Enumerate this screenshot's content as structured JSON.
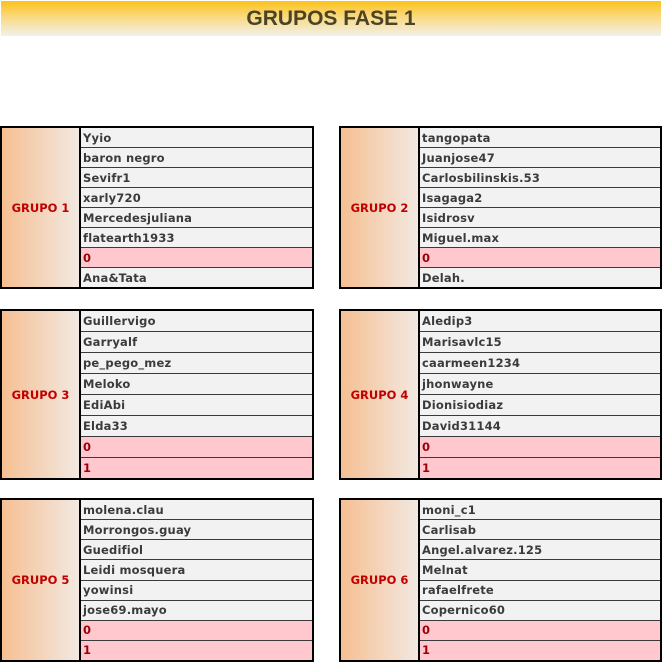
{
  "title": "GRUPOS FASE 1",
  "groups": [
    {
      "label": "GRUPO 1",
      "rows": [
        {
          "text": "Yyio",
          "highlight": false
        },
        {
          "text": "baron negro",
          "highlight": false
        },
        {
          "text": "Sevifr1",
          "highlight": false
        },
        {
          "text": "xarly720",
          "highlight": false
        },
        {
          "text": "Mercedesjuliana",
          "highlight": false
        },
        {
          "text": "flatearth1933",
          "highlight": false
        },
        {
          "text": "0",
          "highlight": true
        },
        {
          "text": "Ana&Tata",
          "highlight": false
        }
      ]
    },
    {
      "label": "GRUPO 2",
      "rows": [
        {
          "text": "tangopata",
          "highlight": false
        },
        {
          "text": "Juanjose47",
          "highlight": false
        },
        {
          "text": "Carlosbilinskis.53",
          "highlight": false
        },
        {
          "text": "Isagaga2",
          "highlight": false
        },
        {
          "text": "Isidrosv",
          "highlight": false
        },
        {
          "text": "Miguel.max",
          "highlight": false
        },
        {
          "text": "0",
          "highlight": true
        },
        {
          "text": "Delah.",
          "highlight": false
        }
      ]
    },
    {
      "label": "GRUPO 3",
      "rows": [
        {
          "text": "Guillervigo",
          "highlight": false
        },
        {
          "text": "Garryalf",
          "highlight": false
        },
        {
          "text": "pe_pego_mez",
          "highlight": false
        },
        {
          "text": "Meloko",
          "highlight": false
        },
        {
          "text": "EdiAbi",
          "highlight": false
        },
        {
          "text": "Elda33",
          "highlight": false
        },
        {
          "text": "0",
          "highlight": true
        },
        {
          "text": "1",
          "highlight": true
        }
      ]
    },
    {
      "label": "GRUPO 4",
      "rows": [
        {
          "text": "Aledip3",
          "highlight": false
        },
        {
          "text": "Marisavlc15",
          "highlight": false
        },
        {
          "text": "caarmeen1234",
          "highlight": false
        },
        {
          "text": "jhonwayne",
          "highlight": false
        },
        {
          "text": "Dionisiodiaz",
          "highlight": false
        },
        {
          "text": "David31144",
          "highlight": false
        },
        {
          "text": "0",
          "highlight": true
        },
        {
          "text": "1",
          "highlight": true
        }
      ]
    },
    {
      "label": "GRUPO 5",
      "rows": [
        {
          "text": "molena.clau",
          "highlight": false
        },
        {
          "text": "Morrongos.guay",
          "highlight": false
        },
        {
          "text": "Guedifiol",
          "highlight": false
        },
        {
          "text": "Leidi mosquera",
          "highlight": false
        },
        {
          "text": "yowinsi",
          "highlight": false
        },
        {
          "text": "jose69.mayo",
          "highlight": false
        },
        {
          "text": "0",
          "highlight": true
        },
        {
          "text": "1",
          "highlight": true
        }
      ]
    },
    {
      "label": "GRUPO 6",
      "rows": [
        {
          "text": "moni_c1",
          "highlight": false
        },
        {
          "text": "Carlisab",
          "highlight": false
        },
        {
          "text": "Angel.alvarez.125",
          "highlight": false
        },
        {
          "text": "Melnat",
          "highlight": false
        },
        {
          "text": "rafaelfrete",
          "highlight": false
        },
        {
          "text": "Copernico60",
          "highlight": false
        },
        {
          "text": "0",
          "highlight": true
        },
        {
          "text": "1",
          "highlight": true
        }
      ]
    }
  ]
}
